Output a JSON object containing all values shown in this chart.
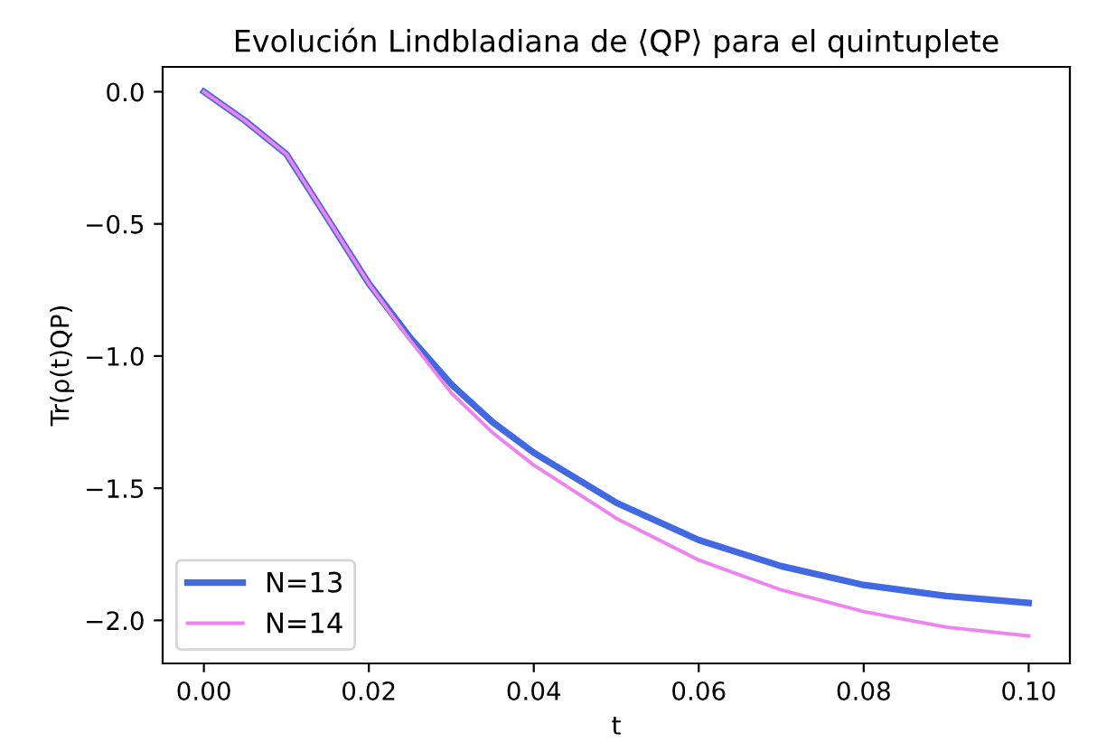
{
  "chart_data": {
    "type": "line",
    "title": "Evolución Lindbladiana de ⟨QP⟩ para el quintuplete",
    "xlabel": "t",
    "ylabel": "Tr(ρ(t)QP)",
    "x": [
      0,
      0.005,
      0.01,
      0.015,
      0.02,
      0.025,
      0.03,
      0.035,
      0.04,
      0.05,
      0.06,
      0.07,
      0.08,
      0.09,
      0.1
    ],
    "series": [
      {
        "name": "N=13",
        "color": "#4169e1",
        "values": [
          0,
          -0.11,
          -0.236,
          -0.48,
          -0.726,
          -0.93,
          -1.107,
          -1.25,
          -1.366,
          -1.555,
          -1.696,
          -1.795,
          -1.866,
          -1.908,
          -1.934
        ]
      },
      {
        "name": "N=14",
        "color": "#ee82ee",
        "values": [
          0,
          -0.11,
          -0.236,
          -0.48,
          -0.726,
          -0.94,
          -1.14,
          -1.29,
          -1.413,
          -1.614,
          -1.772,
          -1.885,
          -1.967,
          -2.026,
          -2.059
        ]
      }
    ],
    "xlim": [
      -0.005,
      0.105
    ],
    "ylim": [
      -2.163,
      0.094
    ],
    "xticks": [
      {
        "value": 0,
        "label": "0.00"
      },
      {
        "value": 0.02,
        "label": "0.02"
      },
      {
        "value": 0.04,
        "label": "0.04"
      },
      {
        "value": 0.06,
        "label": "0.06"
      },
      {
        "value": 0.08,
        "label": "0.08"
      },
      {
        "value": 0.1,
        "label": "0.10"
      }
    ],
    "yticks": [
      {
        "value": 0,
        "label": "0.0"
      },
      {
        "value": -0.5,
        "label": "−0.5"
      },
      {
        "value": -1,
        "label": "−1.0"
      },
      {
        "value": -1.5,
        "label": "−1.5"
      },
      {
        "value": -2,
        "label": "−2.0"
      }
    ],
    "legend": "bottom left",
    "grid": false,
    "marker": "none",
    "line_style": "solid"
  }
}
